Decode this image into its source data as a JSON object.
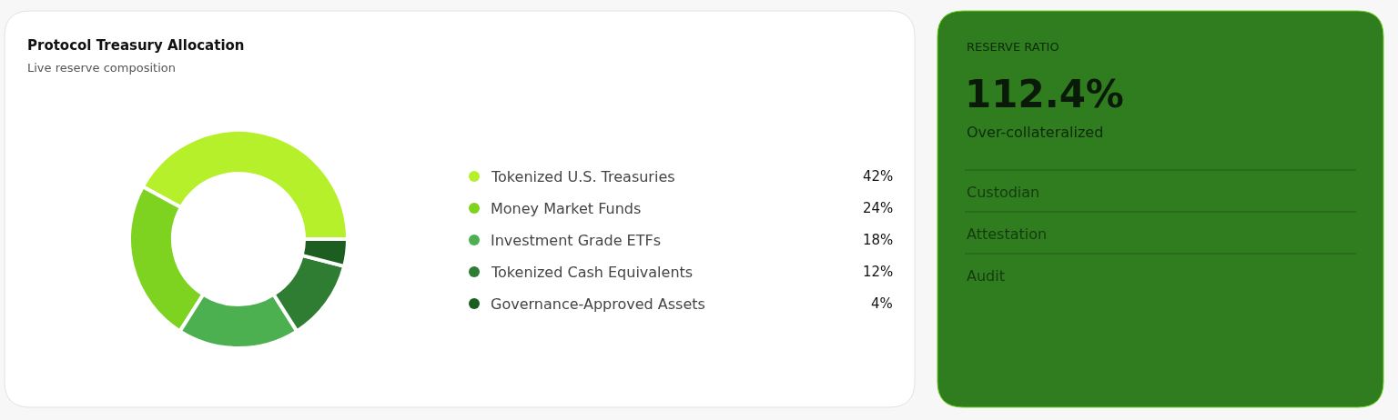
{
  "chart_data": [
    {
      "type": "donut",
      "title": "Protocol Treasury Allocation",
      "subtitle": "Live reserve composition",
      "categories": [
        "Tokenized U.S. Treasuries",
        "Money Market Funds",
        "Investment Grade ETFs",
        "Tokenized Cash Equivalents",
        "Governance-Approved Assets"
      ],
      "values": [
        42,
        24,
        18,
        12,
        4
      ],
      "colors": [
        "#b5f02a",
        "#7ed321",
        "#4caf50",
        "#2e7d32",
        "#1b5e20"
      ],
      "value_labels": [
        "42%",
        "24%",
        "18%",
        "12%",
        "4%"
      ],
      "legend": "right"
    },
    {
      "type": "other",
      "title": "RESERVE RATIO",
      "subtitle": "112.4%",
      "annotations": [
        "Over-collateralized",
        "Custodian",
        "Attestation",
        "Audit"
      ]
    }
  ]
}
